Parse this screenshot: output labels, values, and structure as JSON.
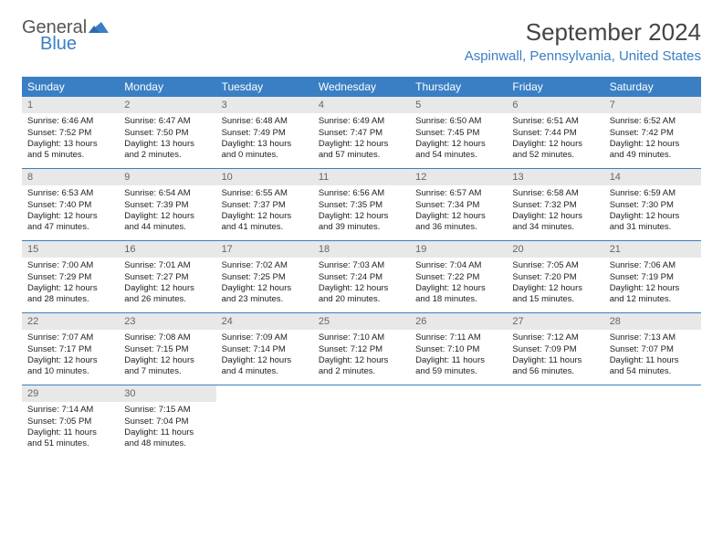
{
  "brand": {
    "part1": "General",
    "part2": "Blue",
    "part1_color": "#555555",
    "part2_color": "#3a7fc4"
  },
  "title": "September 2024",
  "location": "Aspinwall, Pennsylvania, United States",
  "header_bg": "#3a7fc4",
  "day_names": [
    "Sunday",
    "Monday",
    "Tuesday",
    "Wednesday",
    "Thursday",
    "Friday",
    "Saturday"
  ],
  "days": [
    {
      "n": 1,
      "sr": "6:46 AM",
      "ss": "7:52 PM",
      "dl": "13 hours and 5 minutes."
    },
    {
      "n": 2,
      "sr": "6:47 AM",
      "ss": "7:50 PM",
      "dl": "13 hours and 2 minutes."
    },
    {
      "n": 3,
      "sr": "6:48 AM",
      "ss": "7:49 PM",
      "dl": "13 hours and 0 minutes."
    },
    {
      "n": 4,
      "sr": "6:49 AM",
      "ss": "7:47 PM",
      "dl": "12 hours and 57 minutes."
    },
    {
      "n": 5,
      "sr": "6:50 AM",
      "ss": "7:45 PM",
      "dl": "12 hours and 54 minutes."
    },
    {
      "n": 6,
      "sr": "6:51 AM",
      "ss": "7:44 PM",
      "dl": "12 hours and 52 minutes."
    },
    {
      "n": 7,
      "sr": "6:52 AM",
      "ss": "7:42 PM",
      "dl": "12 hours and 49 minutes."
    },
    {
      "n": 8,
      "sr": "6:53 AM",
      "ss": "7:40 PM",
      "dl": "12 hours and 47 minutes."
    },
    {
      "n": 9,
      "sr": "6:54 AM",
      "ss": "7:39 PM",
      "dl": "12 hours and 44 minutes."
    },
    {
      "n": 10,
      "sr": "6:55 AM",
      "ss": "7:37 PM",
      "dl": "12 hours and 41 minutes."
    },
    {
      "n": 11,
      "sr": "6:56 AM",
      "ss": "7:35 PM",
      "dl": "12 hours and 39 minutes."
    },
    {
      "n": 12,
      "sr": "6:57 AM",
      "ss": "7:34 PM",
      "dl": "12 hours and 36 minutes."
    },
    {
      "n": 13,
      "sr": "6:58 AM",
      "ss": "7:32 PM",
      "dl": "12 hours and 34 minutes."
    },
    {
      "n": 14,
      "sr": "6:59 AM",
      "ss": "7:30 PM",
      "dl": "12 hours and 31 minutes."
    },
    {
      "n": 15,
      "sr": "7:00 AM",
      "ss": "7:29 PM",
      "dl": "12 hours and 28 minutes."
    },
    {
      "n": 16,
      "sr": "7:01 AM",
      "ss": "7:27 PM",
      "dl": "12 hours and 26 minutes."
    },
    {
      "n": 17,
      "sr": "7:02 AM",
      "ss": "7:25 PM",
      "dl": "12 hours and 23 minutes."
    },
    {
      "n": 18,
      "sr": "7:03 AM",
      "ss": "7:24 PM",
      "dl": "12 hours and 20 minutes."
    },
    {
      "n": 19,
      "sr": "7:04 AM",
      "ss": "7:22 PM",
      "dl": "12 hours and 18 minutes."
    },
    {
      "n": 20,
      "sr": "7:05 AM",
      "ss": "7:20 PM",
      "dl": "12 hours and 15 minutes."
    },
    {
      "n": 21,
      "sr": "7:06 AM",
      "ss": "7:19 PM",
      "dl": "12 hours and 12 minutes."
    },
    {
      "n": 22,
      "sr": "7:07 AM",
      "ss": "7:17 PM",
      "dl": "12 hours and 10 minutes."
    },
    {
      "n": 23,
      "sr": "7:08 AM",
      "ss": "7:15 PM",
      "dl": "12 hours and 7 minutes."
    },
    {
      "n": 24,
      "sr": "7:09 AM",
      "ss": "7:14 PM",
      "dl": "12 hours and 4 minutes."
    },
    {
      "n": 25,
      "sr": "7:10 AM",
      "ss": "7:12 PM",
      "dl": "12 hours and 2 minutes."
    },
    {
      "n": 26,
      "sr": "7:11 AM",
      "ss": "7:10 PM",
      "dl": "11 hours and 59 minutes."
    },
    {
      "n": 27,
      "sr": "7:12 AM",
      "ss": "7:09 PM",
      "dl": "11 hours and 56 minutes."
    },
    {
      "n": 28,
      "sr": "7:13 AM",
      "ss": "7:07 PM",
      "dl": "11 hours and 54 minutes."
    },
    {
      "n": 29,
      "sr": "7:14 AM",
      "ss": "7:05 PM",
      "dl": "11 hours and 51 minutes."
    },
    {
      "n": 30,
      "sr": "7:15 AM",
      "ss": "7:04 PM",
      "dl": "11 hours and 48 minutes."
    }
  ],
  "labels": {
    "sunrise": "Sunrise:",
    "sunset": "Sunset:",
    "daylight": "Daylight:"
  },
  "style": {
    "daynum_bg": "#e8e8e8",
    "border_color": "#3a7fc4",
    "body_font_size": 9.5,
    "header_font_size": 12,
    "title_font_size": 26,
    "location_font_size": 15
  }
}
